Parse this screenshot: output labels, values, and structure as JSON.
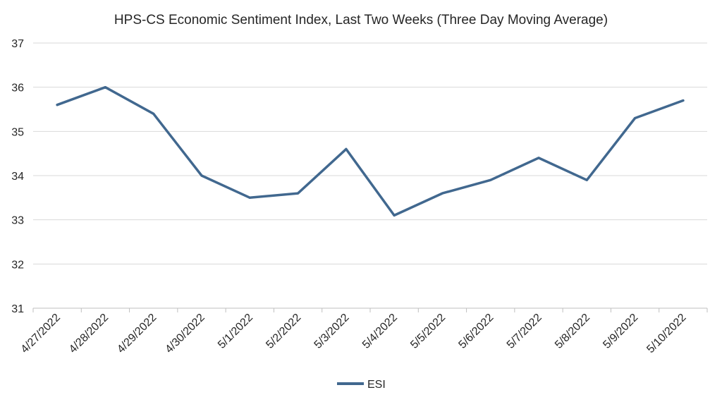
{
  "chart_data": {
    "type": "line",
    "title": "HPS-CS Economic Sentiment Index, Last Two Weeks (Three Day Moving Average)",
    "xlabel": "",
    "ylabel": "",
    "categories": [
      "4/27/2022",
      "4/28/2022",
      "4/29/2022",
      "4/30/2022",
      "5/1/2022",
      "5/2/2022",
      "5/3/2022",
      "5/4/2022",
      "5/5/2022",
      "5/6/2022",
      "5/7/2022",
      "5/8/2022",
      "5/9/2022",
      "5/10/2022"
    ],
    "series": [
      {
        "name": "ESI",
        "color": "#41688f",
        "values": [
          35.6,
          36.0,
          35.4,
          34.0,
          33.5,
          33.6,
          34.6,
          33.1,
          33.6,
          33.9,
          34.4,
          33.9,
          35.3,
          35.7
        ]
      }
    ],
    "ylim": [
      31,
      37
    ],
    "yticks": [
      31,
      32,
      33,
      34,
      35,
      36,
      37
    ],
    "grid": true,
    "legend_position": "bottom"
  }
}
